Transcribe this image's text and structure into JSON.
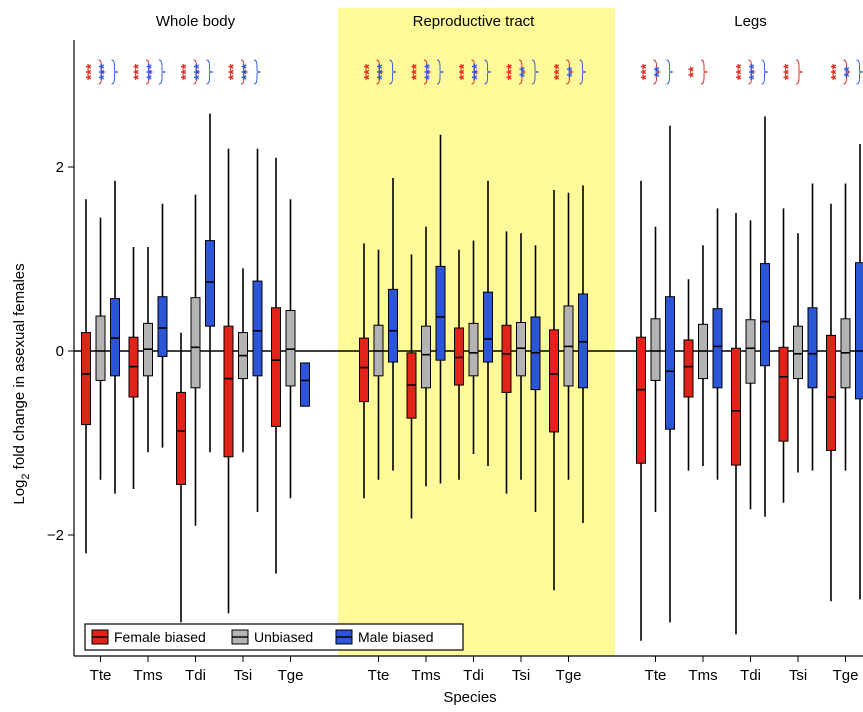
{
  "chart_data": {
    "type": "box",
    "ylabel_main": "Log",
    "ylabel_sub": "2",
    "ylabel_rest": " fold change in asexual females",
    "xlabel": "Species",
    "ylim": [
      -3.3,
      3.5
    ],
    "yticks": [
      {
        "value": 2,
        "label": "2"
      },
      {
        "value": 0,
        "label": "0"
      },
      {
        "value": -2,
        "label": "−2"
      }
    ],
    "highlight_panel": 1,
    "colors": {
      "Female biased": "#e2231a",
      "Unbiased": "#b3b3b3",
      "Male biased": "#2c56d8",
      "highlight": "#fffa99",
      "star_female": "#e2231a",
      "star_male": "#2c56d8"
    },
    "series_names": [
      "Female biased",
      "Unbiased",
      "Male biased"
    ],
    "panels": [
      {
        "title": "Whole body",
        "species": [
          {
            "name": "Tte",
            "stars": {
              "female": "***",
              "male": "***"
            },
            "boxes": [
              {
                "min": -2.2,
                "q1": -0.8,
                "median": -0.25,
                "q3": 0.2,
                "max": 1.65
              },
              {
                "min": -1.4,
                "q1": -0.32,
                "median": 0.0,
                "q3": 0.38,
                "max": 1.45
              },
              {
                "min": -1.55,
                "q1": -0.27,
                "median": 0.14,
                "q3": 0.57,
                "max": 1.85
              }
            ]
          },
          {
            "name": "Tms",
            "stars": {
              "female": "***",
              "male": "***"
            },
            "boxes": [
              {
                "min": -1.5,
                "q1": -0.5,
                "median": -0.17,
                "q3": 0.15,
                "max": 1.13
              },
              {
                "min": -1.1,
                "q1": -0.27,
                "median": 0.02,
                "q3": 0.3,
                "max": 1.13
              },
              {
                "min": -1.05,
                "q1": -0.06,
                "median": 0.25,
                "q3": 0.59,
                "max": 1.6
              }
            ]
          },
          {
            "name": "Tdi",
            "stars": {
              "female": "***",
              "male": "***"
            },
            "boxes": [
              {
                "min": -2.95,
                "q1": -1.45,
                "median": -0.87,
                "q3": -0.45,
                "max": 0.2
              },
              {
                "min": -1.9,
                "q1": -0.4,
                "median": 0.04,
                "q3": 0.58,
                "max": 1.7
              },
              {
                "min": -1.1,
                "q1": 0.27,
                "median": 0.75,
                "q3": 1.2,
                "max": 2.58
              }
            ]
          },
          {
            "name": "Tsi",
            "stars": {
              "female": "***",
              "male": "***"
            },
            "boxes": [
              {
                "min": -2.85,
                "q1": -1.15,
                "median": -0.3,
                "q3": 0.27,
                "max": 2.2
              },
              {
                "min": -1.1,
                "q1": -0.3,
                "median": -0.05,
                "q3": 0.2,
                "max": 0.9
              },
              {
                "min": -1.75,
                "q1": -0.27,
                "median": 0.22,
                "q3": 0.76,
                "max": 2.2
              }
            ]
          },
          {
            "name": "Tge",
            "stars": {
              "female": "",
              "male": ""
            },
            "boxes": [
              {
                "min": -2.42,
                "q1": -0.82,
                "median": -0.1,
                "q3": 0.47,
                "max": 2.1
              },
              {
                "min": -1.6,
                "q1": -0.38,
                "median": 0.02,
                "q3": 0.44,
                "max": 1.65
              },
              {
                "min": -0.6,
                "q1": -0.6,
                "median": -0.32,
                "q3": -0.13,
                "max": -0.13
              }
            ]
          }
        ]
      },
      {
        "title": "Reproductive tract",
        "species": [
          {
            "name": "Tte",
            "stars": {
              "female": "***",
              "male": "***"
            },
            "boxes": [
              {
                "min": -1.6,
                "q1": -0.55,
                "median": -0.18,
                "q3": 0.14,
                "max": 1.17
              },
              {
                "min": -1.4,
                "q1": -0.27,
                "median": 0.0,
                "q3": 0.28,
                "max": 1.1
              },
              {
                "min": -1.3,
                "q1": -0.12,
                "median": 0.22,
                "q3": 0.67,
                "max": 1.88
              }
            ]
          },
          {
            "name": "Tms",
            "stars": {
              "female": "***",
              "male": "***"
            },
            "boxes": [
              {
                "min": -1.82,
                "q1": -0.73,
                "median": -0.37,
                "q3": -0.02,
                "max": 1.05
              },
              {
                "min": -1.47,
                "q1": -0.4,
                "median": -0.04,
                "q3": 0.27,
                "max": 1.35
              },
              {
                "min": -1.44,
                "q1": -0.1,
                "median": 0.37,
                "q3": 0.92,
                "max": 2.35
              }
            ]
          },
          {
            "name": "Tdi",
            "stars": {
              "female": "***",
              "male": "***"
            },
            "boxes": [
              {
                "min": -1.4,
                "q1": -0.37,
                "median": -0.07,
                "q3": 0.25,
                "max": 1.1
              },
              {
                "min": -1.12,
                "q1": -0.27,
                "median": -0.02,
                "q3": 0.3,
                "max": 1.2
              },
              {
                "min": -1.25,
                "q1": -0.12,
                "median": 0.13,
                "q3": 0.64,
                "max": 1.85
              }
            ]
          },
          {
            "name": "Tsi",
            "stars": {
              "female": "***",
              "male": "**"
            },
            "boxes": [
              {
                "min": -1.55,
                "q1": -0.45,
                "median": -0.03,
                "q3": 0.28,
                "max": 1.3
              },
              {
                "min": -1.4,
                "q1": -0.27,
                "median": 0.03,
                "q3": 0.31,
                "max": 1.28
              },
              {
                "min": -1.75,
                "q1": -0.42,
                "median": -0.02,
                "q3": 0.37,
                "max": 1.15
              }
            ]
          },
          {
            "name": "Tge",
            "stars": {
              "female": "***",
              "male": "**"
            },
            "boxes": [
              {
                "min": -2.6,
                "q1": -0.88,
                "median": -0.25,
                "q3": 0.23,
                "max": 1.75
              },
              {
                "min": -1.4,
                "q1": -0.38,
                "median": 0.05,
                "q3": 0.49,
                "max": 1.72
              },
              {
                "min": -1.87,
                "q1": -0.4,
                "median": 0.1,
                "q3": 0.62,
                "max": 1.8
              }
            ]
          }
        ]
      },
      {
        "title": "Legs",
        "species": [
          {
            "name": "Tte",
            "stars": {
              "female": "***",
              "male": "**"
            },
            "boxes": [
              {
                "min": -3.15,
                "q1": -1.22,
                "median": -0.42,
                "q3": 0.15,
                "max": 1.85
              },
              {
                "min": -1.75,
                "q1": -0.32,
                "median": 0.0,
                "q3": 0.35,
                "max": 1.35
              },
              {
                "min": -2.95,
                "q1": -0.85,
                "median": -0.22,
                "q3": 0.59,
                "max": 2.45
              }
            ]
          },
          {
            "name": "Tms",
            "stars": {
              "female": "**",
              "male": ""
            },
            "boxes": [
              {
                "min": -1.3,
                "q1": -0.5,
                "median": -0.17,
                "q3": 0.12,
                "max": 0.78
              },
              {
                "min": -1.25,
                "q1": -0.3,
                "median": 0.0,
                "q3": 0.29,
                "max": 1.15
              },
              {
                "min": -1.4,
                "q1": -0.4,
                "median": 0.05,
                "q3": 0.46,
                "max": 1.55
              }
            ]
          },
          {
            "name": "Tdi",
            "stars": {
              "female": "***",
              "male": "***"
            },
            "boxes": [
              {
                "min": -3.08,
                "q1": -1.24,
                "median": -0.65,
                "q3": 0.03,
                "max": 1.5
              },
              {
                "min": -1.72,
                "q1": -0.35,
                "median": 0.03,
                "q3": 0.34,
                "max": 1.42
              },
              {
                "min": -1.8,
                "q1": -0.16,
                "median": 0.32,
                "q3": 0.95,
                "max": 2.55
              }
            ]
          },
          {
            "name": "Tsi",
            "stars": {
              "female": "***",
              "male": ""
            },
            "boxes": [
              {
                "min": -1.65,
                "q1": -0.98,
                "median": -0.28,
                "q3": 0.04,
                "max": 1.55
              },
              {
                "min": -1.32,
                "q1": -0.3,
                "median": -0.03,
                "q3": 0.27,
                "max": 1.28
              },
              {
                "min": -1.3,
                "q1": -0.4,
                "median": -0.03,
                "q3": 0.47,
                "max": 1.82
              }
            ]
          },
          {
            "name": "Tge",
            "stars": {
              "female": "***",
              "male": "**"
            },
            "boxes": [
              {
                "min": -2.72,
                "q1": -1.08,
                "median": -0.5,
                "q3": 0.17,
                "max": 1.6
              },
              {
                "min": -1.3,
                "q1": -0.4,
                "median": -0.02,
                "q3": 0.35,
                "max": 1.82
              },
              {
                "min": -2.7,
                "q1": -0.52,
                "median": 0.0,
                "q3": 0.96,
                "max": 2.25
              }
            ]
          }
        ]
      }
    ]
  }
}
